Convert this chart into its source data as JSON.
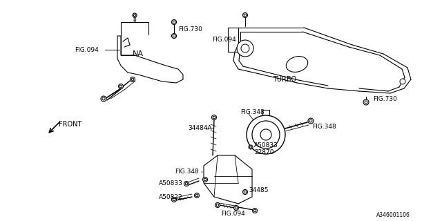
{
  "background_color": "#ffffff",
  "line_color": "#000000",
  "diagram_number": "A346001106",
  "labels": {
    "FIG094_left": "FIG.094",
    "FIG730_top": "FIG.730",
    "FIG094_right": "FIG.094",
    "TURBO": "TURBO",
    "FIG730_right": "FIG.730",
    "NA": "NA",
    "FRONT": "FRONT",
    "FIG348_top": "FIG.348",
    "FIG348_mid": "FIG.348",
    "FIG348_left": "FIG.348",
    "part_34484A": "34484A",
    "part_A50833_top": "A50833",
    "part_22870": "22870",
    "part_A50833_bot": "A50833",
    "part_A50822": "A50822",
    "part_34485": "34485",
    "FIG094_bot": "FIG.094"
  }
}
